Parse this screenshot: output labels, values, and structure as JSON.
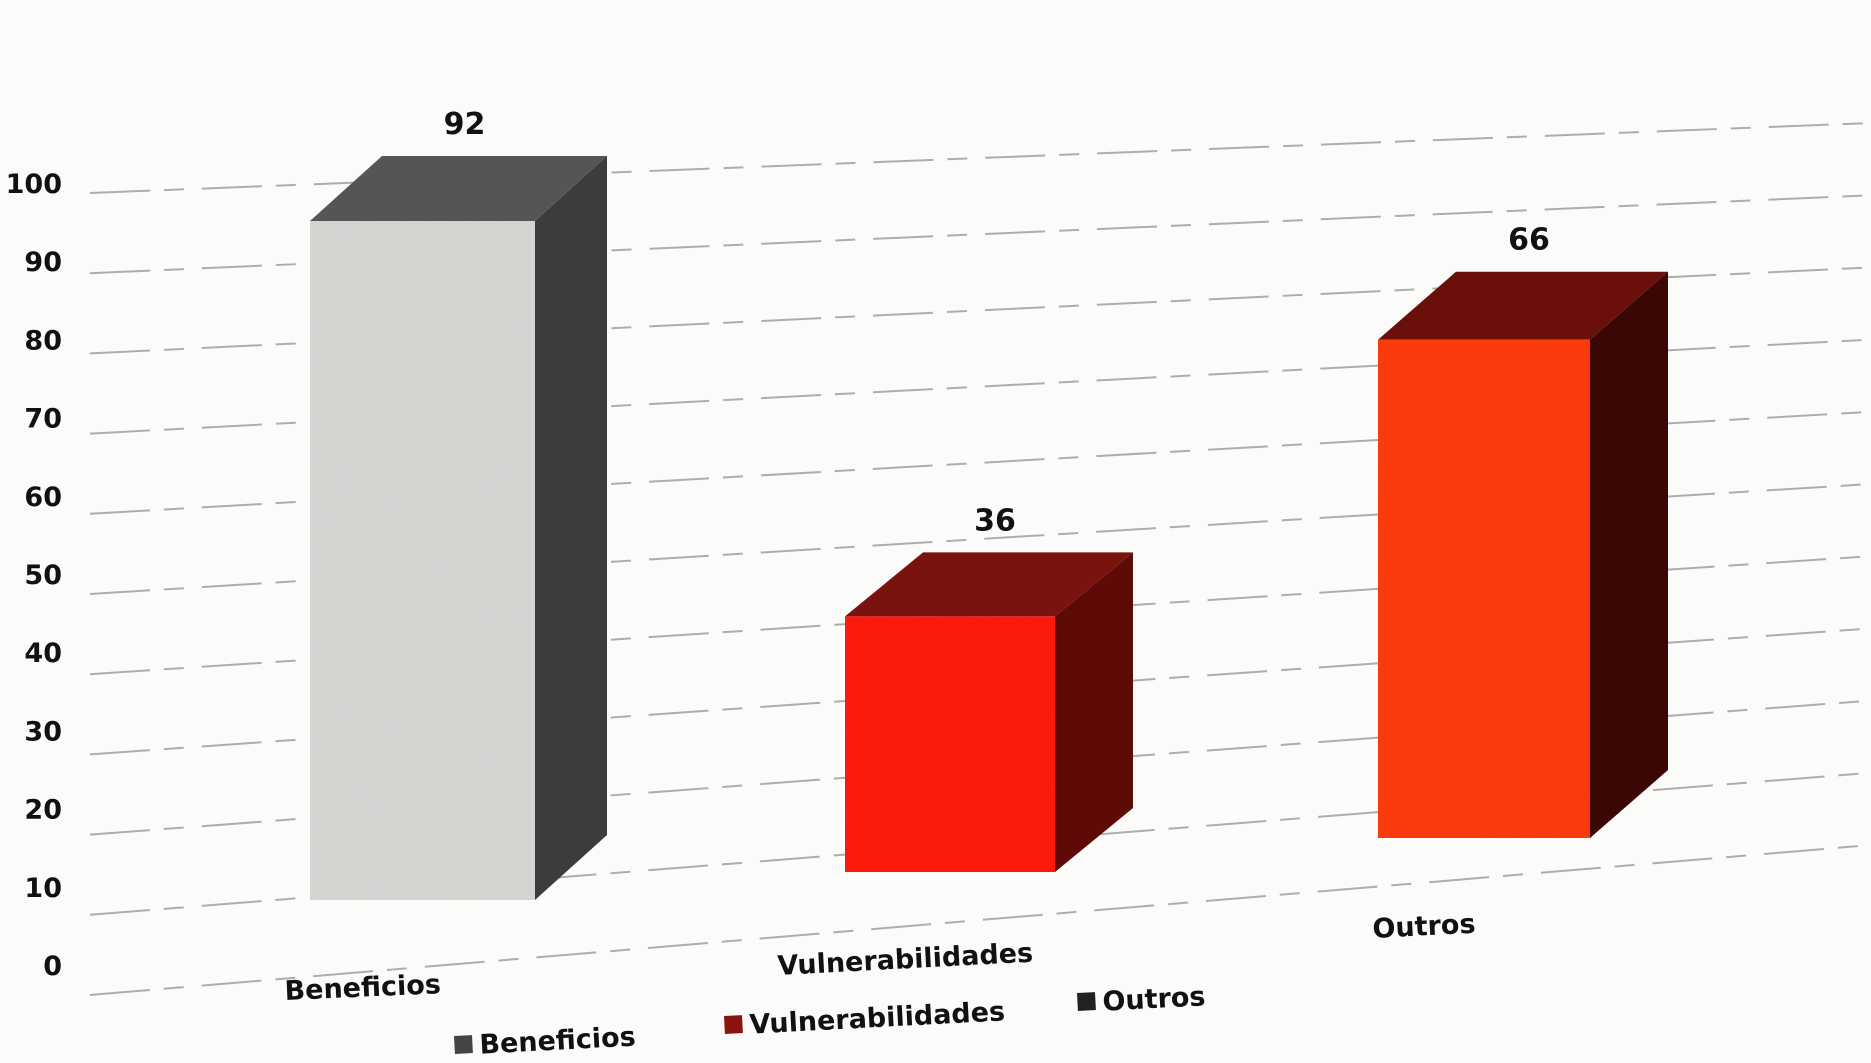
{
  "chart_data": {
    "type": "bar",
    "style": "3d-column",
    "categories": [
      "Beneficios",
      "Vulnerabilidades",
      "Outros"
    ],
    "values": [
      92,
      36,
      66
    ],
    "ylim": [
      0,
      100
    ],
    "yticks": [
      0,
      10,
      20,
      30,
      40,
      50,
      60,
      70,
      80,
      90,
      100
    ],
    "grid": true,
    "legend": {
      "placement": "bottom",
      "entries": [
        "Beneficios",
        "Vulnerabilidades",
        "Outros"
      ]
    },
    "colors": {
      "front": [
        "#d8d8d6",
        "#ff1a0a",
        "#ff3b10"
      ],
      "side": [
        "#3c3c3c",
        "#5e0b08",
        "#3a0705"
      ],
      "top": [
        "#555555",
        "#7a120d",
        "#6a0f0a"
      ],
      "legend": [
        "#444444",
        "#8a1410",
        "#222222"
      ]
    }
  }
}
